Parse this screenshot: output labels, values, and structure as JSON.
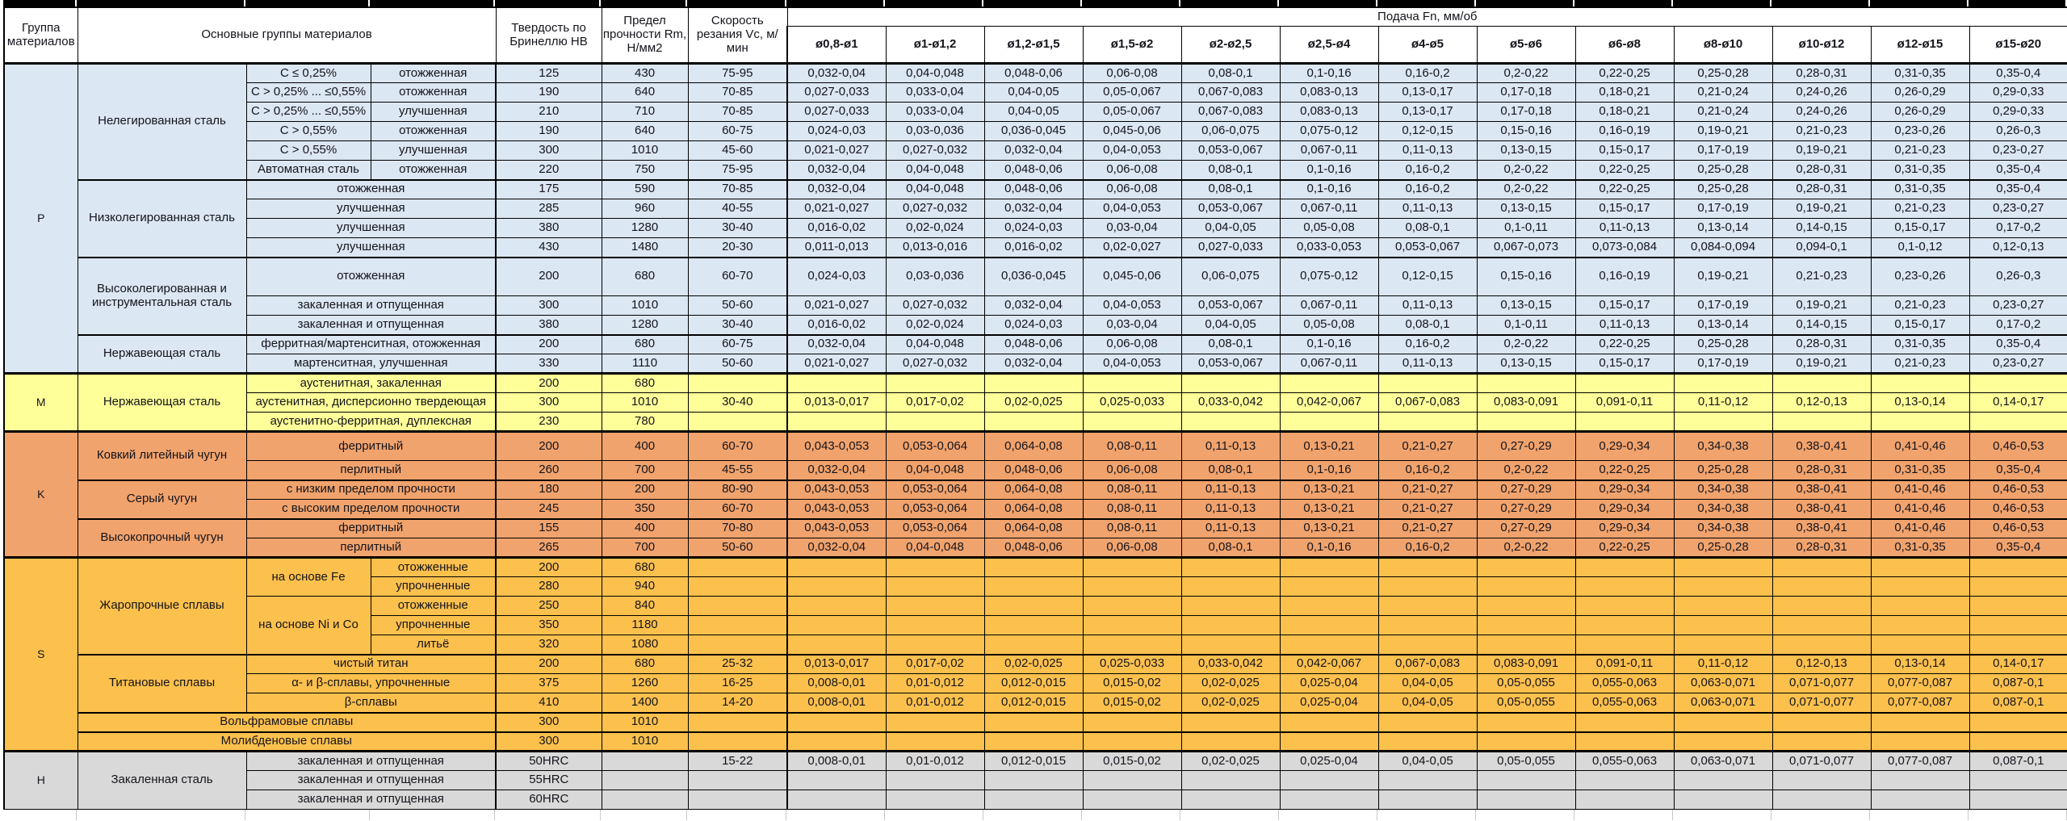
{
  "header": {
    "col_group": "Группа материалов",
    "col_main": "Основные группы материалов",
    "col_hb": "Твердость по Бринеллю HB",
    "col_rm": "Предел прочности Rm, Н/мм2",
    "col_vc": "Скорость резания Vc, м/мин",
    "feed_title": "Подача Fn, мм/об",
    "diameters": [
      "ø0,8-ø1",
      "ø1-ø1,2",
      "ø1,2-ø1,5",
      "ø1,5-ø2",
      "ø2-ø2,5",
      "ø2,5-ø4",
      "ø4-ø5",
      "ø5-ø6",
      "ø6-ø8",
      "ø8-ø10",
      "ø10-ø12",
      "ø12-ø15",
      "ø15-ø20"
    ]
  },
  "groups": [
    {
      "code": "P",
      "color": "#dbe7f3",
      "sections": [
        {
          "name": "Нелегированная сталь",
          "rows": [
            {
              "sub1": "C ≤ 0,25%",
              "sub2": "отожженная",
              "hb": "125",
              "rm": "430",
              "vc": "75-95",
              "feeds": [
                "0,032-0,04",
                "0,04-0,048",
                "0,048-0,06",
                "0,06-0,08",
                "0,08-0,1",
                "0,1-0,16",
                "0,16-0,2",
                "0,2-0,22",
                "0,22-0,25",
                "0,25-0,28",
                "0,28-0,31",
                "0,31-0,35",
                "0,35-0,4"
              ]
            },
            {
              "sub1": "C > 0,25% ... ≤0,55%",
              "sub2": "отожженная",
              "hb": "190",
              "rm": "640",
              "vc": "70-85",
              "feeds": [
                "0,027-0,033",
                "0,033-0,04",
                "0,04-0,05",
                "0,05-0,067",
                "0,067-0,083",
                "0,083-0,13",
                "0,13-0,17",
                "0,17-0,18",
                "0,18-0,21",
                "0,21-0,24",
                "0,24-0,26",
                "0,26-0,29",
                "0,29-0,33"
              ]
            },
            {
              "sub1": "C > 0,25% ... ≤0,55%",
              "sub2": "улучшенная",
              "hb": "210",
              "rm": "710",
              "vc": "70-85",
              "feeds": [
                "0,027-0,033",
                "0,033-0,04",
                "0,04-0,05",
                "0,05-0,067",
                "0,067-0,083",
                "0,083-0,13",
                "0,13-0,17",
                "0,17-0,18",
                "0,18-0,21",
                "0,21-0,24",
                "0,24-0,26",
                "0,26-0,29",
                "0,29-0,33"
              ]
            },
            {
              "sub1": "C > 0,55%",
              "sub2": "отожженная",
              "hb": "190",
              "rm": "640",
              "vc": "60-75",
              "feeds": [
                "0,024-0,03",
                "0,03-0,036",
                "0,036-0,045",
                "0,045-0,06",
                "0,06-0,075",
                "0,075-0,12",
                "0,12-0,15",
                "0,15-0,16",
                "0,16-0,19",
                "0,19-0,21",
                "0,21-0,23",
                "0,23-0,26",
                "0,26-0,3"
              ]
            },
            {
              "sub1": "C > 0,55%",
              "sub2": "улучшенная",
              "hb": "300",
              "rm": "1010",
              "vc": "45-60",
              "feeds": [
                "0,021-0,027",
                "0,027-0,032",
                "0,032-0,04",
                "0,04-0,053",
                "0,053-0,067",
                "0,067-0,11",
                "0,11-0,13",
                "0,13-0,15",
                "0,15-0,17",
                "0,17-0,19",
                "0,19-0,21",
                "0,21-0,23",
                "0,23-0,27"
              ]
            },
            {
              "sub1": "Автоматная сталь",
              "sub2": "отожженная",
              "hb": "220",
              "rm": "750",
              "vc": "75-95",
              "feeds": [
                "0,032-0,04",
                "0,04-0,048",
                "0,048-0,06",
                "0,06-0,08",
                "0,08-0,1",
                "0,1-0,16",
                "0,16-0,2",
                "0,2-0,22",
                "0,22-0,25",
                "0,25-0,28",
                "0,28-0,31",
                "0,31-0,35",
                "0,35-0,4"
              ]
            }
          ]
        },
        {
          "name": "Низколегированная сталь",
          "rows": [
            {
              "sub": "отожженная",
              "hb": "175",
              "rm": "590",
              "vc": "70-85",
              "feeds": [
                "0,032-0,04",
                "0,04-0,048",
                "0,048-0,06",
                "0,06-0,08",
                "0,08-0,1",
                "0,1-0,16",
                "0,16-0,2",
                "0,2-0,22",
                "0,22-0,25",
                "0,25-0,28",
                "0,28-0,31",
                "0,31-0,35",
                "0,35-0,4"
              ]
            },
            {
              "sub": "улучшенная",
              "hb": "285",
              "rm": "960",
              "vc": "40-55",
              "feeds": [
                "0,021-0,027",
                "0,027-0,032",
                "0,032-0,04",
                "0,04-0,053",
                "0,053-0,067",
                "0,067-0,11",
                "0,11-0,13",
                "0,13-0,15",
                "0,15-0,17",
                "0,17-0,19",
                "0,19-0,21",
                "0,21-0,23",
                "0,23-0,27"
              ]
            },
            {
              "sub": "улучшенная",
              "hb": "380",
              "rm": "1280",
              "vc": "30-40",
              "feeds": [
                "0,016-0,02",
                "0,02-0,024",
                "0,024-0,03",
                "0,03-0,04",
                "0,04-0,05",
                "0,05-0,08",
                "0,08-0,1",
                "0,1-0,11",
                "0,11-0,13",
                "0,13-0,14",
                "0,14-0,15",
                "0,15-0,17",
                "0,17-0,2"
              ]
            },
            {
              "sub": "улучшенная",
              "hb": "430",
              "rm": "1480",
              "vc": "20-30",
              "feeds": [
                "0,011-0,013",
                "0,013-0,016",
                "0,016-0,02",
                "0,02-0,027",
                "0,027-0,033",
                "0,033-0,053",
                "0,053-0,067",
                "0,067-0,073",
                "0,073-0,084",
                "0,084-0,094",
                "0,094-0,1",
                "0,1-0,12",
                "0,12-0,13"
              ]
            }
          ]
        },
        {
          "name": "Высоколегированная и инструментальная сталь",
          "rows": [
            {
              "sub": "отожженная",
              "h": 48,
              "hb": "200",
              "rm": "680",
              "vc": "60-70",
              "feeds": [
                "0,024-0,03",
                "0,03-0,036",
                "0,036-0,045",
                "0,045-0,06",
                "0,06-0,075",
                "0,075-0,12",
                "0,12-0,15",
                "0,15-0,16",
                "0,16-0,19",
                "0,19-0,21",
                "0,21-0,23",
                "0,23-0,26",
                "0,26-0,3"
              ]
            },
            {
              "sub": "закаленная и отпущенная",
              "hb": "300",
              "rm": "1010",
              "vc": "50-60",
              "feeds": [
                "0,021-0,027",
                "0,027-0,032",
                "0,032-0,04",
                "0,04-0,053",
                "0,053-0,067",
                "0,067-0,11",
                "0,11-0,13",
                "0,13-0,15",
                "0,15-0,17",
                "0,17-0,19",
                "0,19-0,21",
                "0,21-0,23",
                "0,23-0,27"
              ]
            },
            {
              "sub": "закаленная и отпущенная",
              "hb": "380",
              "rm": "1280",
              "vc": "30-40",
              "feeds": [
                "0,016-0,02",
                "0,02-0,024",
                "0,024-0,03",
                "0,03-0,04",
                "0,04-0,05",
                "0,05-0,08",
                "0,08-0,1",
                "0,1-0,11",
                "0,11-0,13",
                "0,13-0,14",
                "0,14-0,15",
                "0,15-0,17",
                "0,17-0,2"
              ]
            }
          ]
        },
        {
          "name": "Нержавеющая сталь",
          "rows": [
            {
              "sub": "ферритная/мартенситная, отожженная",
              "hb": "200",
              "rm": "680",
              "vc": "60-75",
              "feeds": [
                "0,032-0,04",
                "0,04-0,048",
                "0,048-0,06",
                "0,06-0,08",
                "0,08-0,1",
                "0,1-0,16",
                "0,16-0,2",
                "0,2-0,22",
                "0,22-0,25",
                "0,25-0,28",
                "0,28-0,31",
                "0,31-0,35",
                "0,35-0,4"
              ]
            },
            {
              "sub": "мартенситная, улучшенная",
              "hb": "330",
              "rm": "1110",
              "vc": "50-60",
              "feeds": [
                "0,021-0,027",
                "0,027-0,032",
                "0,032-0,04",
                "0,04-0,053",
                "0,053-0,067",
                "0,067-0,11",
                "0,11-0,13",
                "0,13-0,15",
                "0,15-0,17",
                "0,17-0,19",
                "0,19-0,21",
                "0,21-0,23",
                "0,23-0,27"
              ]
            }
          ]
        }
      ]
    },
    {
      "code": "M",
      "color": "#ffff99",
      "sections": [
        {
          "name": "Нержавеющая сталь",
          "rows": [
            {
              "sub": "аустенитная, закаленная",
              "hb": "200",
              "rm": "680",
              "vc": "",
              "feeds": null
            },
            {
              "sub": "аустенитная, дисперсионно твердеющая",
              "hb": "300",
              "rm": "1010",
              "vc": "30-40",
              "feeds": [
                "0,013-0,017",
                "0,017-0,02",
                "0,02-0,025",
                "0,025-0,033",
                "0,033-0,042",
                "0,042-0,067",
                "0,067-0,083",
                "0,083-0,091",
                "0,091-0,11",
                "0,11-0,12",
                "0,12-0,13",
                "0,13-0,14",
                "0,14-0,17"
              ]
            },
            {
              "sub": "аустенитно-ферритная, дуплексная",
              "hb": "230",
              "rm": "780",
              "vc": "",
              "feeds": null
            }
          ]
        }
      ]
    },
    {
      "code": "K",
      "color": "#f1a36d",
      "sections": [
        {
          "name": "Ковкий литейный чугун",
          "rows": [
            {
              "sub": "ферритный",
              "h": 36,
              "hb": "200",
              "rm": "400",
              "vc": "60-70",
              "feeds": [
                "0,043-0,053",
                "0,053-0,064",
                "0,064-0,08",
                "0,08-0,11",
                "0,11-0,13",
                "0,13-0,21",
                "0,21-0,27",
                "0,27-0,29",
                "0,29-0,34",
                "0,34-0,38",
                "0,38-0,41",
                "0,41-0,46",
                "0,46-0,53"
              ]
            },
            {
              "sub": "перлитный",
              "hb": "260",
              "rm": "700",
              "vc": "45-55",
              "feeds": [
                "0,032-0,04",
                "0,04-0,048",
                "0,048-0,06",
                "0,06-0,08",
                "0,08-0,1",
                "0,1-0,16",
                "0,16-0,2",
                "0,2-0,22",
                "0,22-0,25",
                "0,25-0,28",
                "0,28-0,31",
                "0,31-0,35",
                "0,35-0,4"
              ]
            }
          ]
        },
        {
          "name": "Серый чугун",
          "rows": [
            {
              "sub": "с низким пределом прочности",
              "hb": "180",
              "rm": "200",
              "vc": "80-90",
              "feeds": [
                "0,043-0,053",
                "0,053-0,064",
                "0,064-0,08",
                "0,08-0,11",
                "0,11-0,13",
                "0,13-0,21",
                "0,21-0,27",
                "0,27-0,29",
                "0,29-0,34",
                "0,34-0,38",
                "0,38-0,41",
                "0,41-0,46",
                "0,46-0,53"
              ]
            },
            {
              "sub": "с высоким пределом прочности",
              "hb": "245",
              "rm": "350",
              "vc": "60-70",
              "feeds": [
                "0,043-0,053",
                "0,053-0,064",
                "0,064-0,08",
                "0,08-0,11",
                "0,11-0,13",
                "0,13-0,21",
                "0,21-0,27",
                "0,27-0,29",
                "0,29-0,34",
                "0,34-0,38",
                "0,38-0,41",
                "0,41-0,46",
                "0,46-0,53"
              ]
            }
          ]
        },
        {
          "name": "Высокопрочный чугун",
          "rows": [
            {
              "sub": "ферритный",
              "hb": "155",
              "rm": "400",
              "vc": "70-80",
              "feeds": [
                "0,043-0,053",
                "0,053-0,064",
                "0,064-0,08",
                "0,08-0,11",
                "0,11-0,13",
                "0,13-0,21",
                "0,21-0,27",
                "0,27-0,29",
                "0,29-0,34",
                "0,34-0,38",
                "0,38-0,41",
                "0,41-0,46",
                "0,46-0,53"
              ]
            },
            {
              "sub": "перлитный",
              "hb": "265",
              "rm": "700",
              "vc": "50-60",
              "feeds": [
                "0,032-0,04",
                "0,04-0,048",
                "0,048-0,06",
                "0,06-0,08",
                "0,08-0,1",
                "0,1-0,16",
                "0,16-0,2",
                "0,2-0,22",
                "0,22-0,25",
                "0,25-0,28",
                "0,28-0,31",
                "0,31-0,35",
                "0,35-0,4"
              ]
            }
          ]
        }
      ]
    },
    {
      "code": "S",
      "color": "#fcc04d",
      "sections": [
        {
          "name": "Жаропрочные сплавы",
          "rows": [
            {
              "base": "на основе Fe",
              "base_span": 2,
              "sub2": "отожженные",
              "hb": "200",
              "rm": "680",
              "vc": "",
              "feeds": null
            },
            {
              "sub2": "упрочненные",
              "hb": "280",
              "rm": "940",
              "vc": "",
              "feeds": null
            },
            {
              "base": "на основе Ni и Co",
              "base_span": 3,
              "sub2": "отожженные",
              "hb": "250",
              "rm": "840",
              "vc": "",
              "feeds": null
            },
            {
              "sub2": "упрочненные",
              "hb": "350",
              "rm": "1180",
              "vc": "",
              "feeds": null
            },
            {
              "sub2": "литьё",
              "hb": "320",
              "rm": "1080",
              "vc": "",
              "feeds": null
            }
          ]
        },
        {
          "name": "Титановые сплавы",
          "rows": [
            {
              "sub": "чистый титан",
              "hb": "200",
              "rm": "680",
              "vc": "25-32",
              "feeds": [
                "0,013-0,017",
                "0,017-0,02",
                "0,02-0,025",
                "0,025-0,033",
                "0,033-0,042",
                "0,042-0,067",
                "0,067-0,083",
                "0,083-0,091",
                "0,091-0,11",
                "0,11-0,12",
                "0,12-0,13",
                "0,13-0,14",
                "0,14-0,17"
              ]
            },
            {
              "sub": "α- и β-сплавы, упрочненные",
              "hb": "375",
              "rm": "1260",
              "vc": "16-25",
              "feeds": [
                "0,008-0,01",
                "0,01-0,012",
                "0,012-0,015",
                "0,015-0,02",
                "0,02-0,025",
                "0,025-0,04",
                "0,04-0,05",
                "0,05-0,055",
                "0,055-0,063",
                "0,063-0,071",
                "0,071-0,077",
                "0,077-0,087",
                "0,087-0,1"
              ]
            },
            {
              "sub": "β-сплавы",
              "hb": "410",
              "rm": "1400",
              "vc": "14-20",
              "feeds": [
                "0,008-0,01",
                "0,01-0,012",
                "0,012-0,015",
                "0,015-0,02",
                "0,02-0,025",
                "0,025-0,04",
                "0,04-0,05",
                "0,05-0,055",
                "0,055-0,063",
                "0,063-0,071",
                "0,071-0,077",
                "0,077-0,087",
                "0,087-0,1"
              ]
            }
          ]
        },
        {
          "name": "Вольфрамовые сплавы",
          "name_span": 3,
          "rows": [
            {
              "hb": "300",
              "rm": "1010",
              "vc": "",
              "feeds": null
            }
          ]
        },
        {
          "name": "Молибденовые сплавы",
          "name_span": 3,
          "rows": [
            {
              "hb": "300",
              "rm": "1010",
              "vc": "",
              "feeds": null
            }
          ]
        }
      ]
    },
    {
      "code": "H",
      "color": "#d9d9d9",
      "sections": [
        {
          "name": "Закаленная сталь",
          "rows": [
            {
              "sub": "закаленная и отпущенная",
              "hb": "50HRC",
              "rm": "",
              "vc": "15-22",
              "feeds": [
                "0,008-0,01",
                "0,01-0,012",
                "0,012-0,015",
                "0,015-0,02",
                "0,02-0,025",
                "0,025-0,04",
                "0,04-0,05",
                "0,05-0,055",
                "0,055-0,063",
                "0,063-0,071",
                "0,071-0,077",
                "0,077-0,087",
                "0,087-0,1"
              ]
            },
            {
              "sub": "закаленная и отпущенная",
              "hb": "55HRC",
              "rm": "",
              "vc": "",
              "feeds": null
            },
            {
              "sub": "закаленная и отпущенная",
              "hb": "60HRC",
              "rm": "",
              "vc": "",
              "feeds": null
            }
          ]
        }
      ]
    }
  ]
}
